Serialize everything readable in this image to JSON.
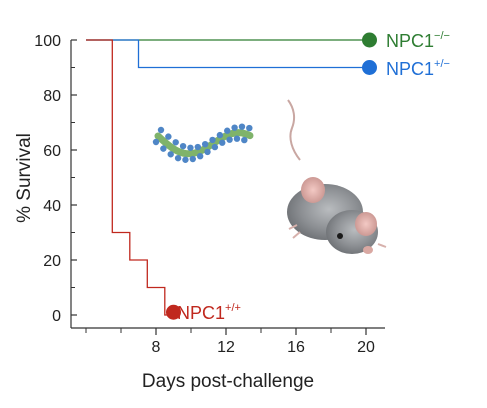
{
  "chart_data": {
    "type": "line",
    "step": true,
    "xlabel": "Days post-challenge",
    "ylabel": "% Survival",
    "xlim": [
      3,
      21
    ],
    "ylim": [
      0,
      100
    ],
    "x_ticks": [
      8,
      12,
      16,
      20
    ],
    "x_minor_ticks": [
      4,
      6,
      10,
      14,
      18
    ],
    "y_ticks": [
      0,
      20,
      40,
      60,
      80,
      100
    ],
    "series": [
      {
        "name": "NPC1",
        "genotype_sup": "−/−",
        "color": "#2e7d32",
        "points": [
          [
            4,
            100
          ],
          [
            20.2,
            100
          ]
        ],
        "end_marker": [
          20.2,
          100
        ]
      },
      {
        "name": "NPC1",
        "genotype_sup": "+/−",
        "color": "#1f6fd6",
        "points": [
          [
            4,
            100
          ],
          [
            7,
            100
          ],
          [
            7,
            90
          ],
          [
            20.2,
            90
          ]
        ],
        "end_marker": [
          20.2,
          90
        ]
      },
      {
        "name": "NPC1",
        "genotype_sup": "+/+",
        "color": "#c0281e",
        "points": [
          [
            4,
            100
          ],
          [
            5.5,
            100
          ],
          [
            5.5,
            30
          ],
          [
            6.5,
            30
          ],
          [
            6.5,
            20
          ],
          [
            7.5,
            20
          ],
          [
            7.5,
            10
          ],
          [
            8.5,
            10
          ],
          [
            8.5,
            0
          ],
          [
            9,
            0
          ]
        ],
        "end_marker": [
          9,
          1
        ]
      }
    ],
    "illustrations": [
      "virus-filament-illustration",
      "mouse-photo"
    ]
  }
}
